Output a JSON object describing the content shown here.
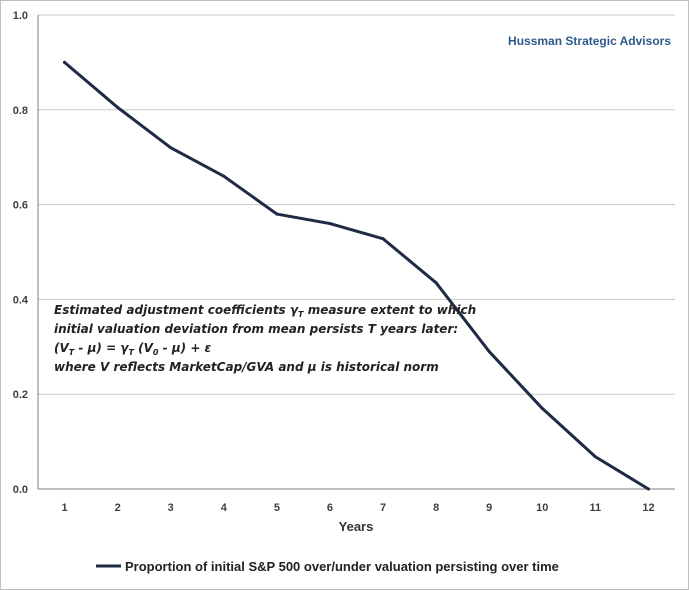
{
  "chart_data": {
    "type": "line",
    "x": [
      1,
      2,
      3,
      4,
      5,
      6,
      7,
      8,
      9,
      10,
      11,
      12
    ],
    "categories": [
      "1",
      "2",
      "3",
      "4",
      "5",
      "6",
      "7",
      "8",
      "9",
      "10",
      "11",
      "12"
    ],
    "series": [
      {
        "name": "Proportion of initial S&P 500 over/under valuation persisting over time",
        "values": [
          0.9,
          0.805,
          0.72,
          0.66,
          0.58,
          0.56,
          0.528,
          0.435,
          0.29,
          0.17,
          0.068,
          0.0
        ],
        "color": "#1f2a44"
      }
    ],
    "xlabel": "Years",
    "ylabel": "",
    "ylim": [
      0,
      1.0
    ],
    "yticks": [
      "0.0",
      "0.2",
      "0.4",
      "0.6",
      "0.8",
      "1.0"
    ],
    "grid": true,
    "legend_position": "bottom"
  },
  "watermark": "Hussman Strategic Advisors",
  "annotation": {
    "line1": "Estimated adjustment coefficients γ",
    "line1_sub": "T",
    "line1_rest": " measure extent to which",
    "line2": "initial valuation deviation from mean persists T years later:",
    "line3_a": "(V",
    "line3_a_sub": "T",
    "line3_b": " - μ) = γ",
    "line3_b_sub": "T",
    "line3_c": " (V",
    "line3_c_sub": "0",
    "line3_d": " - μ) + ε",
    "line4": "where V reflects MarketCap/GVA and μ is historical norm"
  }
}
